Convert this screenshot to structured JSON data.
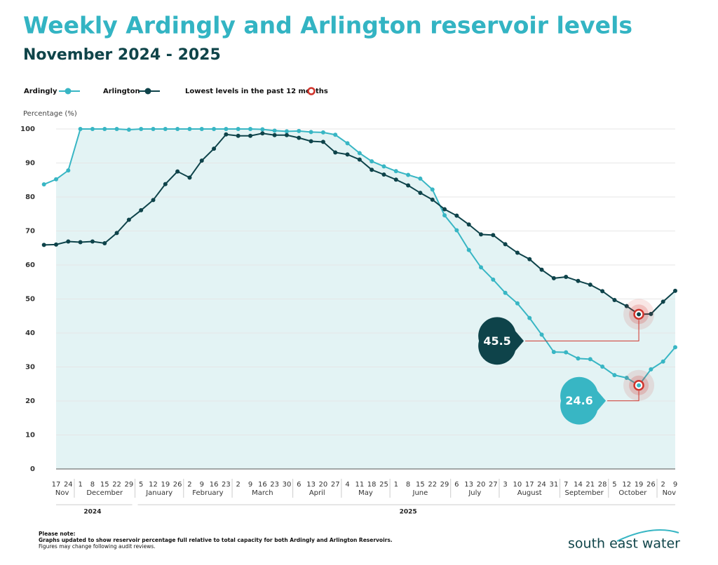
{
  "chart_data": {
    "type": "line",
    "title": "Weekly Ardingly and Arlington reservoir levels",
    "subtitle": "November 2024 - 2025",
    "y_label": "Percentage (%)",
    "lowest_label": "Lowest levels in the past 12 months",
    "years": [
      {
        "label": "2024",
        "months": [
          {
            "label": "Nov",
            "days": [
              null,
              "17",
              "24"
            ]
          },
          {
            "label": "December",
            "days": [
              "1",
              "8",
              "15",
              "22",
              "29"
            ]
          }
        ]
      },
      {
        "label": "2025",
        "months": [
          {
            "label": "January",
            "days": [
              "5",
              "12",
              "19",
              "26"
            ]
          },
          {
            "label": "February",
            "days": [
              "2",
              "9",
              "16",
              "23"
            ]
          },
          {
            "label": "March",
            "days": [
              "2",
              "9",
              "16",
              "23",
              "30"
            ]
          },
          {
            "label": "April",
            "days": [
              "6",
              "13",
              "20",
              "27"
            ]
          },
          {
            "label": "May",
            "days": [
              "4",
              "11",
              "18",
              "25"
            ]
          },
          {
            "label": "June",
            "days": [
              "1",
              "8",
              "15",
              "22",
              "29"
            ]
          },
          {
            "label": "July",
            "days": [
              "6",
              "13",
              "20",
              "27"
            ]
          },
          {
            "label": "August",
            "days": [
              "3",
              "10",
              "17",
              "24",
              "31"
            ]
          },
          {
            "label": "September",
            "days": [
              "7",
              "14",
              "21",
              "28"
            ]
          },
          {
            "label": "October",
            "days": [
              "5",
              "12",
              "19",
              "26"
            ]
          },
          {
            "label": "Nov",
            "days": [
              "2",
              "9"
            ]
          }
        ]
      }
    ],
    "series": [
      {
        "name": "Ardingly",
        "color": "#38b6c4",
        "values": [
          83.7,
          85.2,
          87.8,
          100,
          100,
          100,
          100,
          99.8,
          100,
          100,
          100,
          100,
          100,
          100,
          100,
          100,
          100,
          100,
          99.9,
          99.5,
          99.3,
          99.4,
          99.1,
          99.0,
          98.3,
          95.8,
          92.9,
          90.5,
          89.0,
          87.6,
          86.5,
          85.4,
          82.2,
          74.6,
          70.2,
          64.4,
          59.3,
          55.7,
          51.8,
          48.7,
          44.4,
          39.5,
          34.4,
          34.3,
          32.5,
          32.3,
          30.1,
          27.6,
          26.8,
          24.6,
          29.3,
          31.6,
          35.8
        ]
      },
      {
        "name": "Arlington",
        "color": "#0e434a",
        "values": [
          65.9,
          66.0,
          66.9,
          66.7,
          66.9,
          66.4,
          69.4,
          73.3,
          76.1,
          79.1,
          83.8,
          87.5,
          85.7,
          90.7,
          94.2,
          98.4,
          98.0,
          98.0,
          98.7,
          98.2,
          98.2,
          97.4,
          96.4,
          96.2,
          93.1,
          92.5,
          91.0,
          88.0,
          86.6,
          85.1,
          83.4,
          81.2,
          79.2,
          76.4,
          74.5,
          71.9,
          69.0,
          68.8,
          66.1,
          63.6,
          61.7,
          58.6,
          56.1,
          56.5,
          55.3,
          54.2,
          52.3,
          49.7,
          47.9,
          45.5,
          45.6,
          49.2,
          52.4
        ]
      }
    ],
    "ylim": [
      0,
      100
    ],
    "yticks": [
      0,
      10,
      20,
      30,
      40,
      50,
      60,
      70,
      80,
      90,
      100
    ],
    "grid": true,
    "fill": "#e3f3f4",
    "marker_color": "#d0342c"
  },
  "notes": [
    "Please note:",
    "Graphs updated to show reservoir percentage full relative to total capacity for both Ardingly and Arlington Reservoirs.",
    "Figures may change following audit reviews."
  ],
  "logo": "south east water"
}
